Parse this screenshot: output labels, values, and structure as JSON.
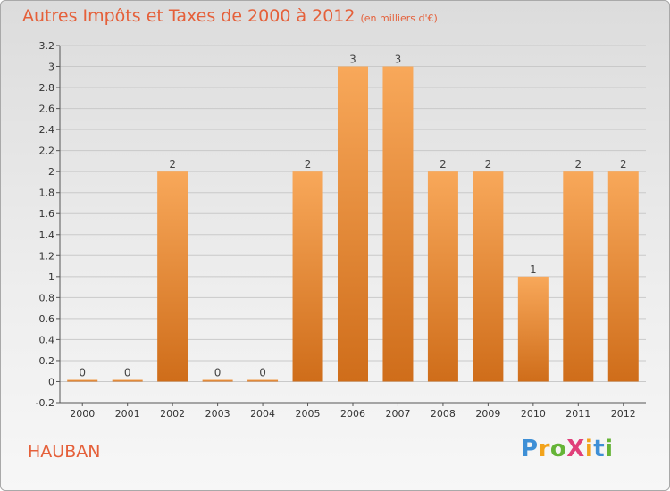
{
  "title": "Autres Impôts et Taxes de 2000 à 2012",
  "subtitle": "(en milliers d'€)",
  "commune": "HAUBAN",
  "logo": {
    "text": "ProXiti",
    "letters": [
      {
        "ch": "P",
        "color": "#3e8fd6"
      },
      {
        "ch": "r",
        "color": "#f2a31c"
      },
      {
        "ch": "o",
        "color": "#65b437"
      },
      {
        "ch": "X",
        "color": "#e0407a"
      },
      {
        "ch": "i",
        "color": "#f2a31c"
      },
      {
        "ch": "t",
        "color": "#3e8fd6"
      },
      {
        "ch": "i",
        "color": "#65b437"
      }
    ]
  },
  "colors": {
    "bar_light": "#f8a85a",
    "bar_dark": "#cf6d1a",
    "title": "#e5603a",
    "grid": "#c9c9c9"
  },
  "chart_data": {
    "type": "bar",
    "title": "Autres Impôts et Taxes de 2000 à 2012",
    "subtitle": "(en milliers d'€)",
    "categories": [
      "2000",
      "2001",
      "2002",
      "2003",
      "2004",
      "2005",
      "2006",
      "2007",
      "2008",
      "2009",
      "2010",
      "2011",
      "2012"
    ],
    "values": [
      0,
      0,
      2,
      0,
      0,
      2,
      3,
      3,
      2,
      2,
      1,
      2,
      2
    ],
    "labels": [
      "0",
      "0",
      "2",
      "0",
      "0",
      "2",
      "3",
      "3",
      "2",
      "2",
      "1",
      "2",
      "2"
    ],
    "ylim": [
      -0.2,
      3.2
    ],
    "yticks": [
      -0.2,
      0,
      0.2,
      0.4,
      0.6,
      0.8,
      1,
      1.2,
      1.4,
      1.6,
      1.8,
      2,
      2.2,
      2.4,
      2.6,
      2.8,
      3,
      3.2
    ],
    "ytick_labels": [
      "-0.2",
      "0",
      "0.2",
      "0.4",
      "0.6",
      "0.8",
      "1",
      "1.2",
      "1.4",
      "1.6",
      "1.8",
      "2",
      "2.2",
      "2.4",
      "2.6",
      "2.8",
      "3",
      "3.2"
    ],
    "grid": true,
    "xlabel": "",
    "ylabel": ""
  }
}
